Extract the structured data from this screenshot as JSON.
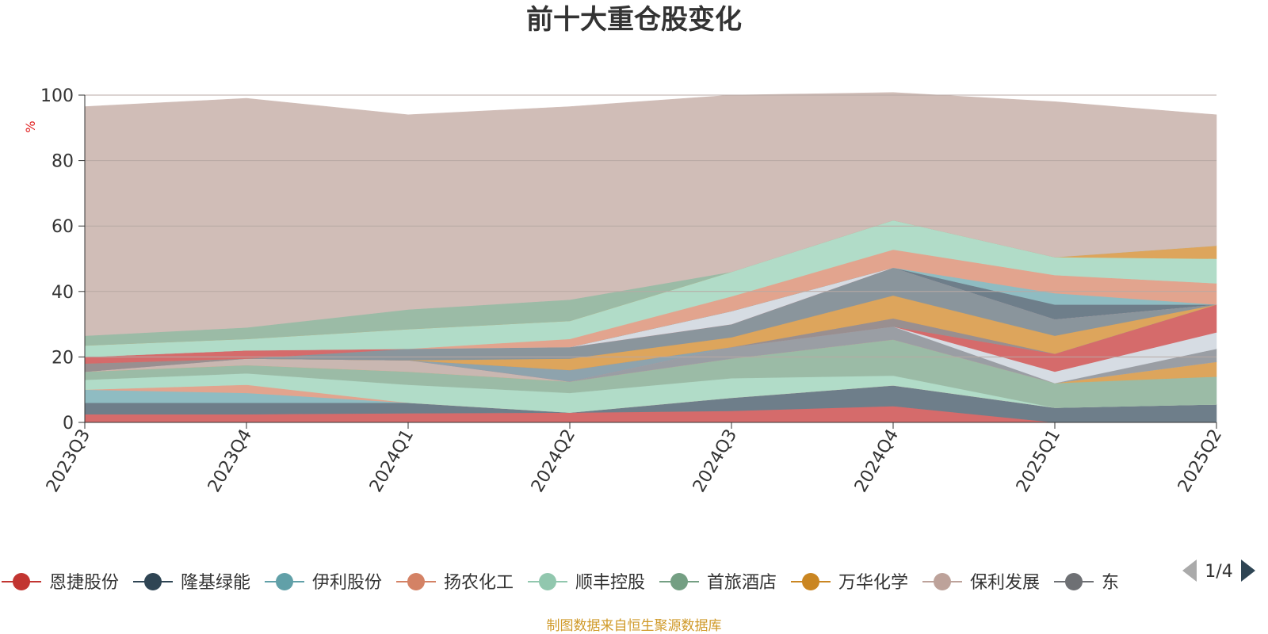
{
  "colors": {
    "background_fill": "#d0bdb7",
    "grid": "#b8a9a4",
    "axis": "#333333"
  },
  "legend_items": [
    {
      "name": "恩捷股份",
      "color": "#c23531"
    },
    {
      "name": "隆基绿能",
      "color": "#2f4554"
    },
    {
      "name": "伊利股份",
      "color": "#61a0a8"
    },
    {
      "name": "扬农化工",
      "color": "#d48265"
    },
    {
      "name": "顺丰控股",
      "color": "#91c7ae"
    },
    {
      "name": "首旅酒店",
      "color": "#749f83"
    },
    {
      "name": "万华化学",
      "color": "#ca8622"
    },
    {
      "name": "保利发展",
      "color": "#bda29a"
    },
    {
      "name": "东",
      "color": "#6e7074"
    }
  ],
  "pager": {
    "text": "1/4"
  },
  "source_note": "制图数据来自恒生聚源数据库",
  "chart_data": {
    "type": "area",
    "stacked": true,
    "title": "前十大重仓股变化",
    "ylabel": "%",
    "ylim": [
      0,
      100
    ],
    "yticks": [
      0,
      20,
      40,
      60,
      80,
      100
    ],
    "categories": [
      "2023Q3",
      "2023Q4",
      "2024Q1",
      "2024Q2",
      "2024Q3",
      "2024Q4",
      "2025Q1",
      "2025Q2"
    ],
    "legend_position": "bottom",
    "grid": true,
    "series": [
      {
        "color": "#d56b6b",
        "values": [
          2.5,
          2.5,
          2.8,
          3.0,
          3.5,
          5.0,
          0.0,
          0.0
        ]
      },
      {
        "color": "#6e7e8a",
        "values": [
          3.5,
          3.5,
          3.2,
          0.0,
          4.0,
          6.3,
          4.5,
          5.5
        ]
      },
      {
        "color": "#8fbcc2",
        "values": [
          4.0,
          3.0,
          0.0,
          0.0,
          0.0,
          0.0,
          0.0,
          0.0
        ]
      },
      {
        "color": "#e2a48e",
        "values": [
          0.0,
          2.5,
          0.0,
          0.0,
          0.0,
          0.0,
          0.0,
          0.0
        ]
      },
      {
        "color": "#b1dcc8",
        "values": [
          3.0,
          3.5,
          5.5,
          6.0,
          6.0,
          3.0,
          0.0,
          0.0
        ]
      },
      {
        "color": "#9bbba6",
        "values": [
          2.5,
          2.5,
          4.0,
          3.5,
          6.0,
          11.0,
          7.5,
          8.5
        ]
      },
      {
        "color": "#dda55c",
        "values": [
          0.0,
          0.0,
          0.0,
          0.0,
          0.0,
          0.0,
          0.0,
          4.5
        ]
      },
      {
        "color": "#c9b7b1",
        "values": [
          0.0,
          2.0,
          3.5,
          0.0,
          0.0,
          0.0,
          0.0,
          0.0
        ]
      },
      {
        "color": "#9a9ea4",
        "values": [
          0.0,
          0.0,
          0.0,
          0.0,
          3.5,
          4.0,
          0.0,
          4.0
        ]
      },
      {
        "color": "#d6dce3",
        "values": [
          0.0,
          0.0,
          0.0,
          0.0,
          0.0,
          0.0,
          3.5,
          5.0
        ]
      },
      {
        "color": "#d56b6b",
        "values": [
          0.0,
          0.0,
          0.0,
          0.0,
          0.0,
          0.0,
          5.5,
          8.5
        ]
      },
      {
        "color": "#8ea3ad",
        "values": [
          0.0,
          0.0,
          0.0,
          3.5,
          0.0,
          0.0,
          0.0,
          0.0
        ]
      },
      {
        "color": "#998f90",
        "values": [
          2.5,
          0.0,
          0.0,
          0.0,
          0.0,
          2.5,
          0.0,
          0.0
        ]
      },
      {
        "color": "#dda55c",
        "values": [
          0.0,
          0.0,
          0.0,
          3.5,
          3.0,
          7.0,
          5.5,
          0.0
        ]
      },
      {
        "color": "#8a959c",
        "values": [
          0.0,
          0.0,
          3.5,
          3.5,
          4.0,
          8.5,
          5.0,
          0.0
        ]
      },
      {
        "color": "#d56b6b",
        "values": [
          2.0,
          2.5,
          0.0,
          0.0,
          0.0,
          0.0,
          0.0,
          0.0
        ]
      },
      {
        "color": "#d6dce3",
        "values": [
          0.0,
          0.0,
          0.0,
          0.0,
          4.0,
          0.0,
          0.0,
          0.0
        ]
      },
      {
        "color": "#6e7e8a",
        "values": [
          0.0,
          0.0,
          0.0,
          0.0,
          0.0,
          0.0,
          4.5,
          0.0
        ]
      },
      {
        "color": "#8fbcc2",
        "values": [
          0.0,
          0.0,
          0.0,
          0.0,
          0.0,
          0.0,
          3.5,
          0.0
        ]
      },
      {
        "color": "#e2a48e",
        "values": [
          0.0,
          0.0,
          0.0,
          2.5,
          4.5,
          5.5,
          5.5,
          6.5
        ]
      },
      {
        "color": "#b1dcc8",
        "values": [
          3.5,
          3.5,
          6.0,
          5.5,
          7.5,
          9.0,
          5.5,
          7.5
        ]
      },
      {
        "color": "#dda55c",
        "values": [
          0.0,
          0.0,
          0.0,
          0.0,
          0.0,
          0.0,
          0.0,
          4.0
        ]
      },
      {
        "color": "#9bbba6",
        "values": [
          3.0,
          3.5,
          6.0,
          6.5,
          0.0,
          0.0,
          0.0,
          0.0
        ]
      },
      {
        "color": "#d0bdb7",
        "values": [
          70.0,
          70.0,
          59.5,
          59.0,
          54.0,
          39.0,
          47.5,
          40.0
        ]
      }
    ]
  }
}
